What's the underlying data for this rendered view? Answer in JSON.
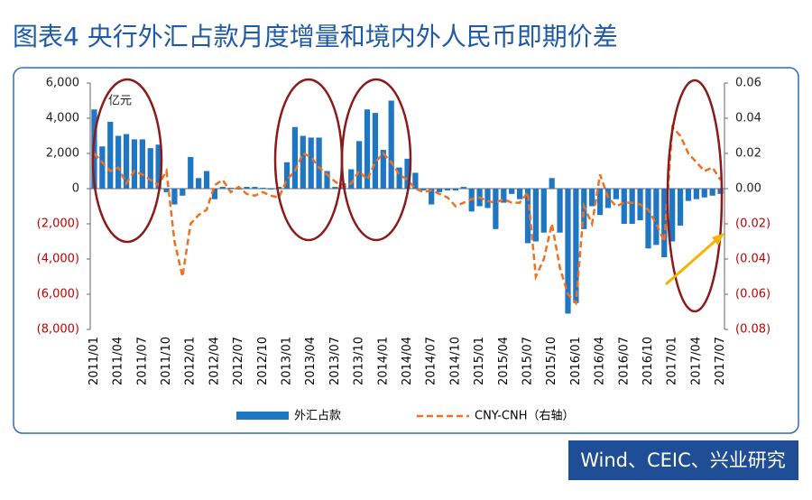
{
  "chart_data": {
    "type": "bar_line",
    "title": "图表4 央行外汇占款月度增量和境内外人民币即期价差",
    "unit_label": "亿元",
    "source": "Wind、CEIC、兴业研究",
    "categories": [
      "2011/01",
      null,
      null,
      "2011/04",
      null,
      null,
      "2011/07",
      null,
      null,
      "2011/10",
      null,
      null,
      "2012/01",
      null,
      null,
      "2012/04",
      null,
      null,
      "2012/07",
      null,
      null,
      "2012/10",
      null,
      null,
      "2013/01",
      null,
      null,
      "2013/04",
      null,
      null,
      "2013/07",
      null,
      null,
      "2013/10",
      null,
      null,
      "2014/01",
      null,
      null,
      "2014/04",
      null,
      null,
      "2014/07",
      null,
      null,
      "2014/10",
      null,
      null,
      "2015/01",
      null,
      null,
      "2015/04",
      null,
      null,
      "2015/07",
      null,
      null,
      "2015/10",
      null,
      null,
      "2016/01",
      null,
      null,
      "2016/04",
      null,
      null,
      "2016/07",
      null,
      null,
      "2016/10",
      null,
      null,
      "2017/01",
      null,
      null,
      "2017/04",
      null,
      null,
      "2017/07"
    ],
    "series": [
      {
        "name": "外汇占款",
        "kind": "bar",
        "color": "#1f77c4",
        "values": [
          4500,
          2400,
          3800,
          3000,
          3100,
          2800,
          2800,
          2300,
          2500,
          -200,
          -900,
          -400,
          1800,
          600,
          1000,
          -600,
          100,
          50,
          -50,
          100,
          100,
          50,
          -50,
          100,
          1500,
          3500,
          3000,
          2900,
          2900,
          1000,
          100,
          300,
          1100,
          2700,
          4500,
          4300,
          2200,
          5000,
          1200,
          1700,
          900,
          -100,
          -900,
          -200,
          -100,
          -100,
          100,
          -1300,
          -1000,
          -1100,
          -2300,
          -800,
          -300,
          -600,
          -3100,
          -3000,
          -2500,
          600,
          -2500,
          -7100,
          -6500,
          -2300,
          -1000,
          -1500,
          -1100,
          -600,
          -2000,
          -2000,
          -1800,
          -3400,
          -3200,
          -3900,
          -3000,
          -2100,
          -700,
          -600,
          -500,
          -400,
          -300
        ]
      },
      {
        "name": "CNY-CNH（右轴）",
        "kind": "line",
        "axis": "y2",
        "color": "#f07020",
        "dashed": true,
        "values": [
          0.02,
          0.015,
          0.01,
          0.012,
          0.003,
          0.01,
          0.008,
          0.005,
          0.002,
          0.01,
          -0.03,
          -0.05,
          -0.02,
          -0.015,
          -0.012,
          0.002,
          0.005,
          -0.002,
          0.001,
          -0.003,
          -0.004,
          -0.002,
          -0.004,
          -0.005,
          0.005,
          0.01,
          0.02,
          0.018,
          0.012,
          0.008,
          0.004,
          0.001,
          0.003,
          0.01,
          0.005,
          0.015,
          0.02,
          0.015,
          0.008,
          0.005,
          0,
          -0.002,
          -0.001,
          -0.003,
          -0.005,
          -0.01,
          -0.008,
          -0.006,
          -0.005,
          -0.007,
          -0.008,
          -0.006,
          -0.008,
          -0.008,
          -0.002,
          -0.05,
          -0.04,
          -0.02,
          -0.045,
          -0.06,
          -0.065,
          -0.01,
          -0.02,
          0.008,
          -0.005,
          -0.01,
          -0.008,
          -0.008,
          -0.009,
          -0.012,
          -0.02,
          -0.03,
          0.035,
          0.03,
          0.02,
          0.015,
          0.01,
          0.012,
          0.005
        ]
      }
    ],
    "ylim": [
      -8000,
      6000
    ],
    "yticks": [
      {
        "value": 6000,
        "label": "6,000"
      },
      {
        "value": 4000,
        "label": "4,000"
      },
      {
        "value": 2000,
        "label": "2,000"
      },
      0,
      {
        "value": -2000,
        "label": "(2,000)"
      },
      {
        "value": -4000,
        "label": "(4,000)"
      },
      {
        "value": -6000,
        "label": "(6,000)"
      },
      {
        "value": -8000,
        "label": "(8,000)"
      }
    ],
    "y2lim": [
      -0.08,
      0.06
    ],
    "y2ticks": [
      0.06,
      0.04,
      0.02,
      {
        "value": 0,
        "label": "0.00"
      },
      {
        "value": -0.02,
        "label": "(0.02)"
      },
      {
        "value": -0.04,
        "label": "(0.04)"
      },
      {
        "value": -0.06,
        "label": "(0.06)"
      },
      {
        "value": -0.08,
        "label": "(0.08)"
      }
    ],
    "negative_tick_color": "#c00000",
    "legend": "bottom"
  }
}
